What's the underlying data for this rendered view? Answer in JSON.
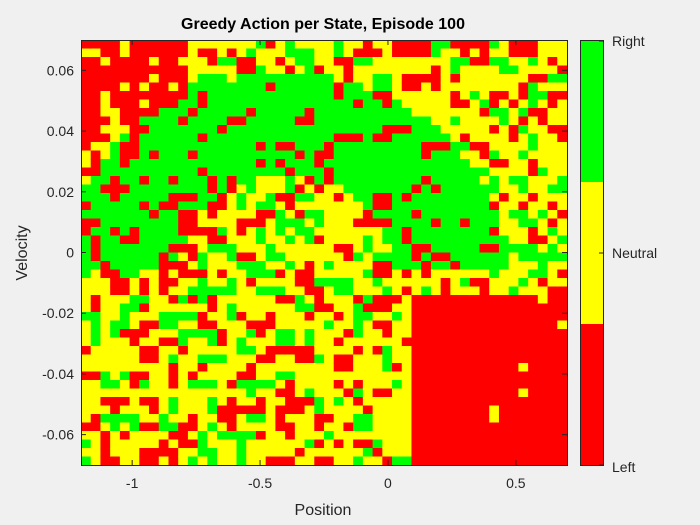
{
  "chart_data": {
    "type": "heatmap",
    "title": "Greedy Action per State, Episode 100",
    "xlabel": "Position",
    "ylabel": "Velocity",
    "xlim": [
      -1.2,
      0.7
    ],
    "ylim": [
      -0.07,
      0.07
    ],
    "x_ticks": [
      -1,
      -0.5,
      0,
      0.5
    ],
    "x_tick_labels": [
      "-1",
      "-0.5",
      "0",
      "0.5"
    ],
    "y_ticks": [
      -0.06,
      -0.04,
      -0.02,
      0,
      0.02,
      0.04,
      0.06
    ],
    "y_tick_labels": [
      "-0.06",
      "-0.04",
      "-0.02",
      "0",
      "0.02",
      "0.04",
      "0.06"
    ],
    "grid": false,
    "grid_size": [
      50,
      50
    ],
    "categories": [
      "Left",
      "Neutral",
      "Right"
    ],
    "colors": {
      "Left": "#ff0000",
      "Neutral": "#ffff00",
      "Right": "#00ff00"
    },
    "colorbar": {
      "position": "right",
      "labels": [
        "Right",
        "Neutral",
        "Left"
      ]
    },
    "region_summary": [
      {
        "description": "upper arc band",
        "action": "Right"
      },
      {
        "description": "lower-left cluster",
        "action": "Left"
      },
      {
        "description": "bottom-right region",
        "action": "Left"
      },
      {
        "description": "center-bottom region",
        "action": "Neutral"
      }
    ]
  },
  "figure": {
    "background": "#f0f0f0",
    "axes_color": "#262626"
  }
}
